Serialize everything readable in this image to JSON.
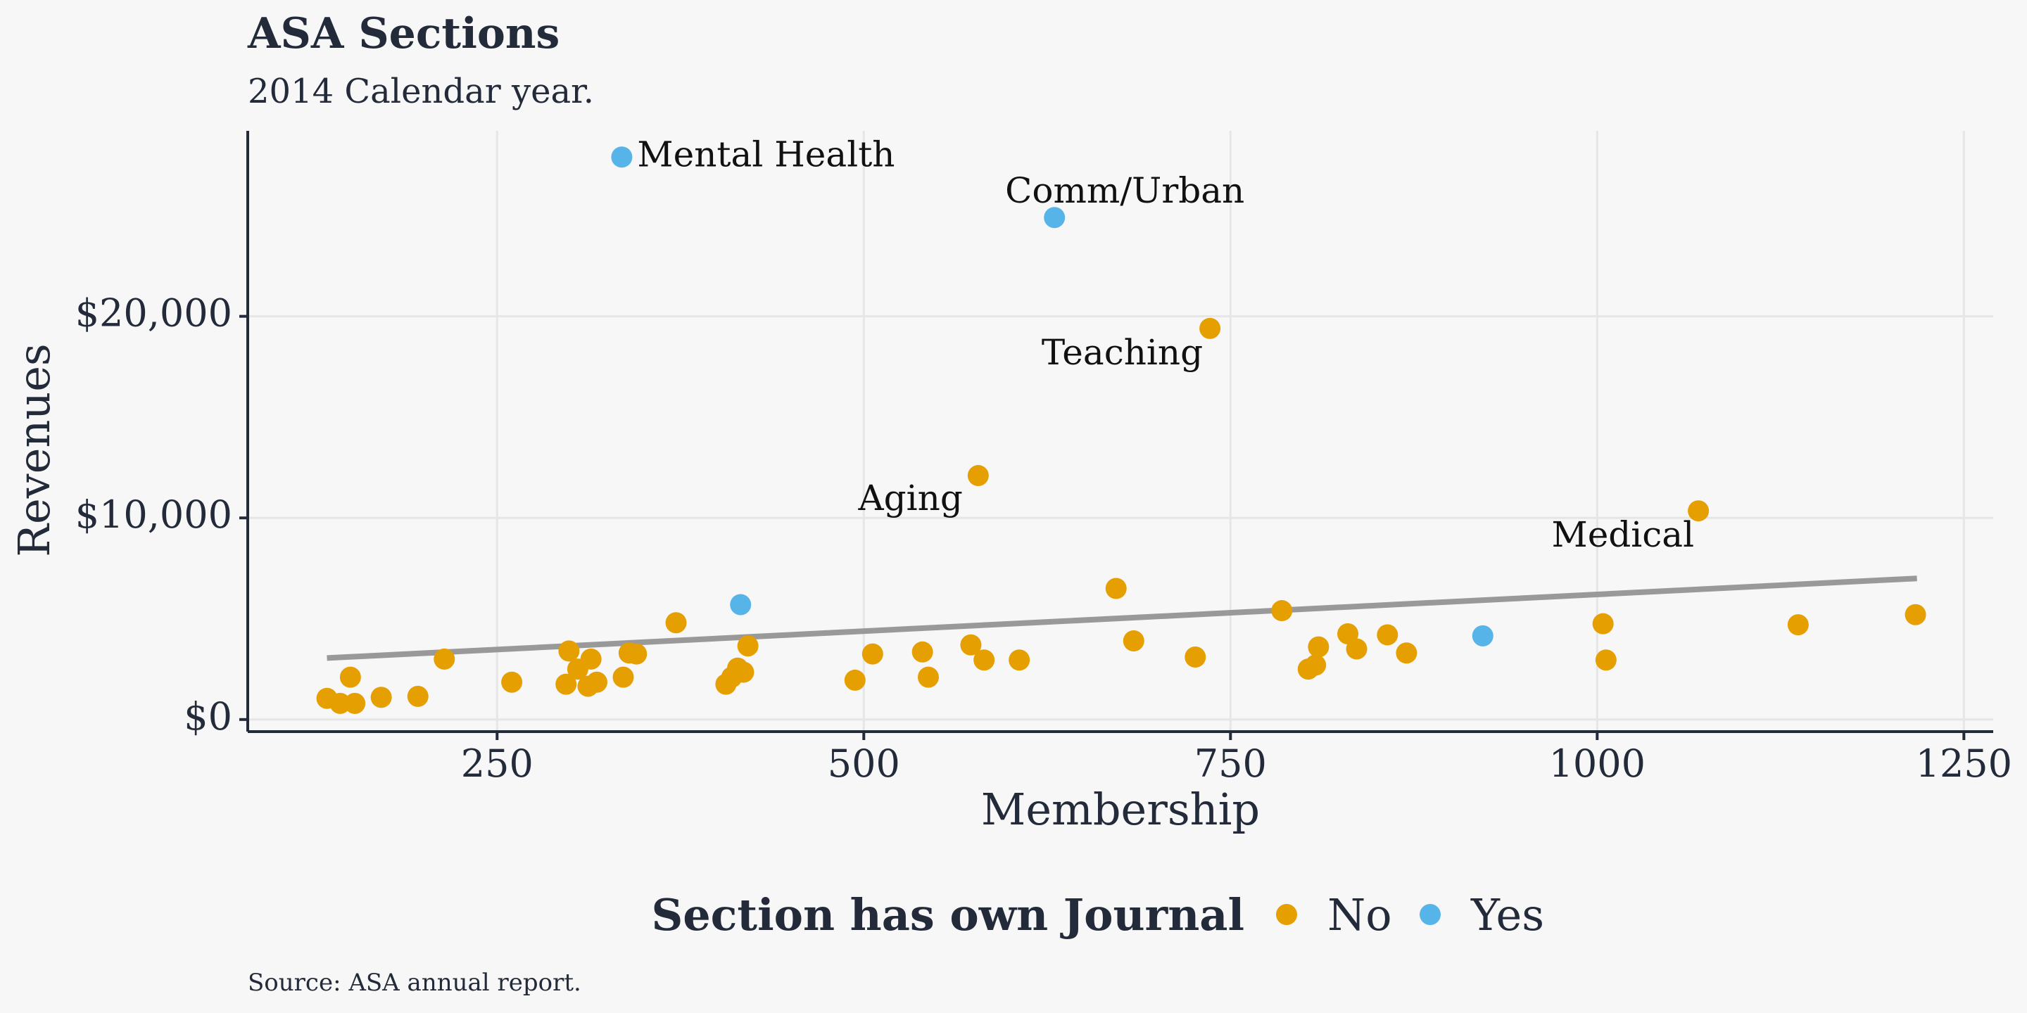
{
  "chart_data": {
    "type": "scatter",
    "title": "ASA Sections",
    "subtitle": "2014 Calendar year.",
    "xlabel": "Membership",
    "ylabel": "Revenues",
    "caption": "Source: ASA annual report.",
    "xlim": [
      80,
      1270
    ],
    "ylim": [
      -600,
      29200
    ],
    "x_ticks": [
      250,
      500,
      750,
      1000,
      1250
    ],
    "x_tick_labels": [
      "250",
      "500",
      "750",
      "1000",
      "1250"
    ],
    "y_ticks": [
      0,
      10000,
      20000
    ],
    "y_tick_labels": [
      "$0",
      "$10,000",
      "$20,000"
    ],
    "grid": true,
    "legend": {
      "title": "Section has own Journal",
      "position": "bottom",
      "entries": [
        {
          "label": "No",
          "color": "#E69F00"
        },
        {
          "label": "Yes",
          "color": "#56B4E9"
        }
      ]
    },
    "trend_line": {
      "color": "#999999",
      "x": [
        134,
        1218
      ],
      "y": [
        3050,
        7000
      ]
    },
    "series": [
      {
        "name": "No",
        "color": "#E69F00",
        "points": [
          [
            134,
            1050
          ],
          [
            143,
            800
          ],
          [
            150,
            2100
          ],
          [
            153,
            800
          ],
          [
            171,
            1100
          ],
          [
            196,
            1150
          ],
          [
            214,
            3000
          ],
          [
            260,
            1850
          ],
          [
            297,
            1750
          ],
          [
            299,
            3400
          ],
          [
            305,
            2500
          ],
          [
            312,
            1650
          ],
          [
            314,
            3000
          ],
          [
            318,
            1850
          ],
          [
            336,
            2100
          ],
          [
            340,
            3300
          ],
          [
            345,
            3250
          ],
          [
            372,
            4800
          ],
          [
            406,
            1750
          ],
          [
            410,
            2100
          ],
          [
            414,
            2550
          ],
          [
            418,
            2350
          ],
          [
            421,
            3650
          ],
          [
            494,
            1950
          ],
          [
            506,
            3250
          ],
          [
            540,
            3350
          ],
          [
            544,
            2100
          ],
          [
            573,
            3700
          ],
          [
            578,
            12100
          ],
          [
            582,
            2950
          ],
          [
            606,
            2950
          ],
          [
            672,
            6500
          ],
          [
            684,
            3900
          ],
          [
            726,
            3100
          ],
          [
            736,
            19400
          ],
          [
            785,
            5400
          ],
          [
            803,
            2500
          ],
          [
            808,
            2700
          ],
          [
            810,
            3600
          ],
          [
            830,
            4250
          ],
          [
            836,
            3500
          ],
          [
            857,
            4200
          ],
          [
            870,
            3300
          ],
          [
            1004,
            4750
          ],
          [
            1006,
            2950
          ],
          [
            1069,
            10350
          ],
          [
            1137,
            4700
          ],
          [
            1217,
            5200
          ]
        ]
      },
      {
        "name": "Yes",
        "color": "#56B4E9",
        "points": [
          [
            335,
            27900
          ],
          [
            416,
            5700
          ],
          [
            630,
            24900
          ],
          [
            922,
            4150
          ]
        ]
      }
    ],
    "annotations": [
      {
        "text": "Mental Health",
        "x": 335,
        "y": 27900,
        "align": "start",
        "dx": 22,
        "dy": 0
      },
      {
        "text": "Comm/Urban",
        "x": 630,
        "y": 24900,
        "align": "middle",
        "dx": 100,
        "dy": -34
      },
      {
        "text": "Teaching",
        "x": 736,
        "y": 19400,
        "align": "end",
        "dx": -10,
        "dy": 38
      },
      {
        "text": "Aging",
        "x": 578,
        "y": 12100,
        "align": "end",
        "dx": -22,
        "dy": 36
      },
      {
        "text": "Medical",
        "x": 1069,
        "y": 10350,
        "align": "end",
        "dx": -6,
        "dy": 38
      }
    ]
  }
}
